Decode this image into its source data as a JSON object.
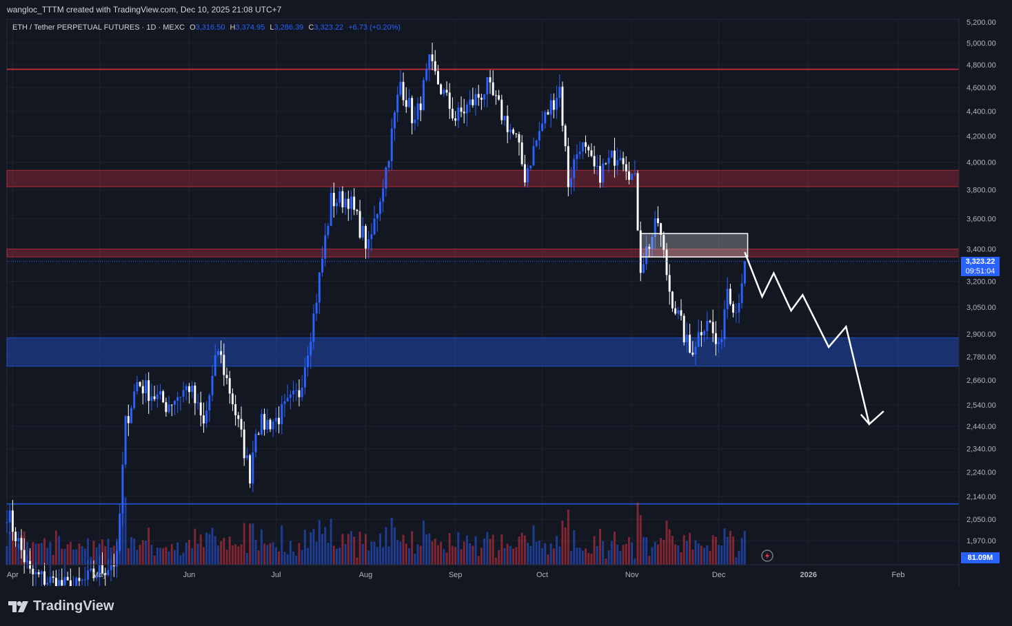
{
  "header": {
    "caption": "wangloc_TTTM created with TradingView.com, Dec 10, 2025 21:08 UTC+7"
  },
  "legend": {
    "symbol": "ETH / Tether PERPETUAL FUTURES · 1D · MEXC",
    "open_label": "O",
    "open": "3,316.50",
    "high_label": "H",
    "high": "3,374.95",
    "low_label": "L",
    "low": "3,286.39",
    "close_label": "C",
    "close": "3,323.22",
    "change": "+6.73 (+0.20%)"
  },
  "price_tag": {
    "price": "3,323.22",
    "countdown": "09:51:04"
  },
  "volume_tag": {
    "value": "81.09M"
  },
  "brand": {
    "name": "TradingView"
  },
  "colors": {
    "background": "#131722",
    "up": "#2962ff",
    "down": "#ffffff",
    "resistance": "#f23645",
    "support": "#2962ff"
  },
  "chart_data": {
    "type": "candlestick",
    "y_scale": "log",
    "ylim": [
      1900,
      5300
    ],
    "x_ticks": [
      "Apr",
      "May",
      "Jun",
      "Jul",
      "Aug",
      "Sep",
      "Oct",
      "Nov",
      "Dec",
      "2026",
      "Feb"
    ],
    "y_ticks": [
      "5,200.00",
      "5,000.00",
      "4,800.00",
      "4,600.00",
      "4,400.00",
      "4,200.00",
      "4,000.00",
      "3,800.00",
      "3,600.00",
      "3,400.00",
      "3,200.00",
      "3,050.00",
      "2,900.00",
      "2,780.00",
      "2,660.00",
      "2,540.00",
      "2,440.00",
      "2,340.00",
      "2,240.00",
      "2,140.00",
      "2,050.00",
      "1,970.00"
    ],
    "x_range": [
      "2025-03-30",
      "2026-02-22"
    ],
    "levels": [
      {
        "kind": "resistance-line",
        "price": 4760
      },
      {
        "kind": "resistance-zone",
        "low": 3820,
        "high": 3940
      },
      {
        "kind": "resistance-zone",
        "low": 3350,
        "high": 3400
      },
      {
        "kind": "support-zone",
        "low": 2730,
        "high": 2880
      },
      {
        "kind": "support-line",
        "price": 2110
      }
    ],
    "supply_box": {
      "from": "2025-11-04",
      "to": "2025-12-11",
      "low": 3350,
      "high": 3500
    },
    "projection": [
      {
        "date": "2025-12-10",
        "price": 3380
      },
      {
        "date": "2025-12-16",
        "price": 3110
      },
      {
        "date": "2025-12-20",
        "price": 3250
      },
      {
        "date": "2025-12-26",
        "price": 3030
      },
      {
        "date": "2025-12-30",
        "price": 3120
      },
      {
        "date": "2026-01-08",
        "price": 2830
      },
      {
        "date": "2026-01-14",
        "price": 2940
      },
      {
        "date": "2026-01-22",
        "price": 2450
      },
      {
        "date": "2026-01-27",
        "price": 2510
      }
    ],
    "anchors": [
      {
        "date": "2025-03-30",
        "price": 2080
      },
      {
        "date": "2025-04-07",
        "price": 1850
      },
      {
        "date": "2025-04-22",
        "price": 1800
      },
      {
        "date": "2025-05-07",
        "price": 1900
      },
      {
        "date": "2025-05-10",
        "price": 2450
      },
      {
        "date": "2025-05-14",
        "price": 2650
      },
      {
        "date": "2025-05-24",
        "price": 2540
      },
      {
        "date": "2025-06-01",
        "price": 2630
      },
      {
        "date": "2025-06-06",
        "price": 2440
      },
      {
        "date": "2025-06-11",
        "price": 2820
      },
      {
        "date": "2025-06-16",
        "price": 2560
      },
      {
        "date": "2025-06-22",
        "price": 2230
      },
      {
        "date": "2025-06-24",
        "price": 2440
      },
      {
        "date": "2025-07-01",
        "price": 2470
      },
      {
        "date": "2025-07-09",
        "price": 2600
      },
      {
        "date": "2025-07-14",
        "price": 3000
      },
      {
        "date": "2025-07-20",
        "price": 3720
      },
      {
        "date": "2025-07-26",
        "price": 3740
      },
      {
        "date": "2025-08-02",
        "price": 3400
      },
      {
        "date": "2025-08-08",
        "price": 3950
      },
      {
        "date": "2025-08-13",
        "price": 4650
      },
      {
        "date": "2025-08-18",
        "price": 4300
      },
      {
        "date": "2025-08-23",
        "price": 4800
      },
      {
        "date": "2025-09-01",
        "price": 4340
      },
      {
        "date": "2025-09-12",
        "price": 4600
      },
      {
        "date": "2025-09-22",
        "price": 4170
      },
      {
        "date": "2025-09-25",
        "price": 3900
      },
      {
        "date": "2025-10-01",
        "price": 4300
      },
      {
        "date": "2025-10-07",
        "price": 4600
      },
      {
        "date": "2025-10-10",
        "price": 3850
      },
      {
        "date": "2025-10-14",
        "price": 4150
      },
      {
        "date": "2025-10-20",
        "price": 3900
      },
      {
        "date": "2025-10-28",
        "price": 4100
      },
      {
        "date": "2025-11-02",
        "price": 3850
      },
      {
        "date": "2025-11-04",
        "price": 3300
      },
      {
        "date": "2025-11-10",
        "price": 3580
      },
      {
        "date": "2025-11-14",
        "price": 3150
      },
      {
        "date": "2025-11-21",
        "price": 2800
      },
      {
        "date": "2025-11-27",
        "price": 3000
      },
      {
        "date": "2025-12-01",
        "price": 2800
      },
      {
        "date": "2025-12-04",
        "price": 3180
      },
      {
        "date": "2025-12-07",
        "price": 3030
      },
      {
        "date": "2025-12-10",
        "price": 3323
      }
    ]
  }
}
